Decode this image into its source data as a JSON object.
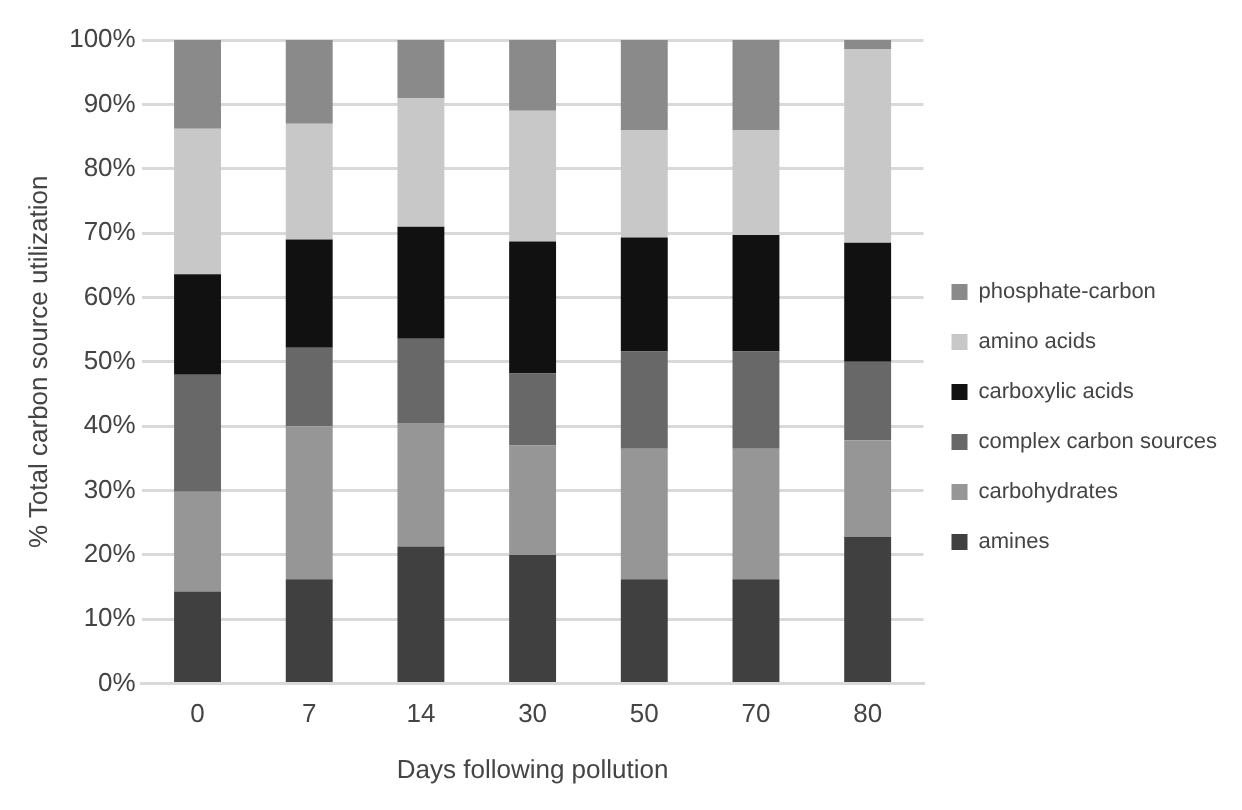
{
  "chart_data": {
    "type": "bar",
    "stacked": true,
    "xlabel": "Days following pollution",
    "ylabel": "% Total carbon source utilization",
    "categories": [
      "0",
      "7",
      "14",
      "30",
      "50",
      "70",
      "80"
    ],
    "series": [
      {
        "name": "amines",
        "color": "#404040",
        "values": [
          14.3,
          16.2,
          21.3,
          20,
          16.2,
          16.2,
          22.8
        ]
      },
      {
        "name": "carbohydrates",
        "color": "#969696",
        "values": [
          15.5,
          23.8,
          19.2,
          17,
          20.3,
          20.3,
          15
        ]
      },
      {
        "name": "complex carbon sources",
        "color": "#686868",
        "values": [
          18.2,
          12.2,
          13.1,
          11.2,
          15.1,
          15.1,
          12.2
        ]
      },
      {
        "name": "carboxylic acids",
        "color": "#111111",
        "values": [
          15.6,
          16.8,
          17.4,
          20.5,
          17.7,
          18.1,
          18.5
        ]
      },
      {
        "name": "amino acids",
        "color": "#c8c8c8",
        "values": [
          22.6,
          18,
          20,
          20.3,
          16.7,
          16.3,
          30.1
        ]
      },
      {
        "name": "phosphate-carbon",
        "color": "#8a8a8a",
        "values": [
          13.8,
          13,
          9,
          11,
          14,
          14,
          1.4
        ]
      }
    ],
    "ylim": [
      0,
      100
    ],
    "yticks": [
      {
        "value": 0,
        "label": "0%"
      },
      {
        "value": 10,
        "label": "10%"
      },
      {
        "value": 20,
        "label": "20%"
      },
      {
        "value": 30,
        "label": "30%"
      },
      {
        "value": 40,
        "label": "40%"
      },
      {
        "value": 50,
        "label": "50%"
      },
      {
        "value": 60,
        "label": "60%"
      },
      {
        "value": 70,
        "label": "70%"
      },
      {
        "value": 80,
        "label": "80%"
      },
      {
        "value": 90,
        "label": "90%"
      },
      {
        "value": 100,
        "label": "100%"
      }
    ],
    "grid": "y",
    "legend": "right"
  }
}
